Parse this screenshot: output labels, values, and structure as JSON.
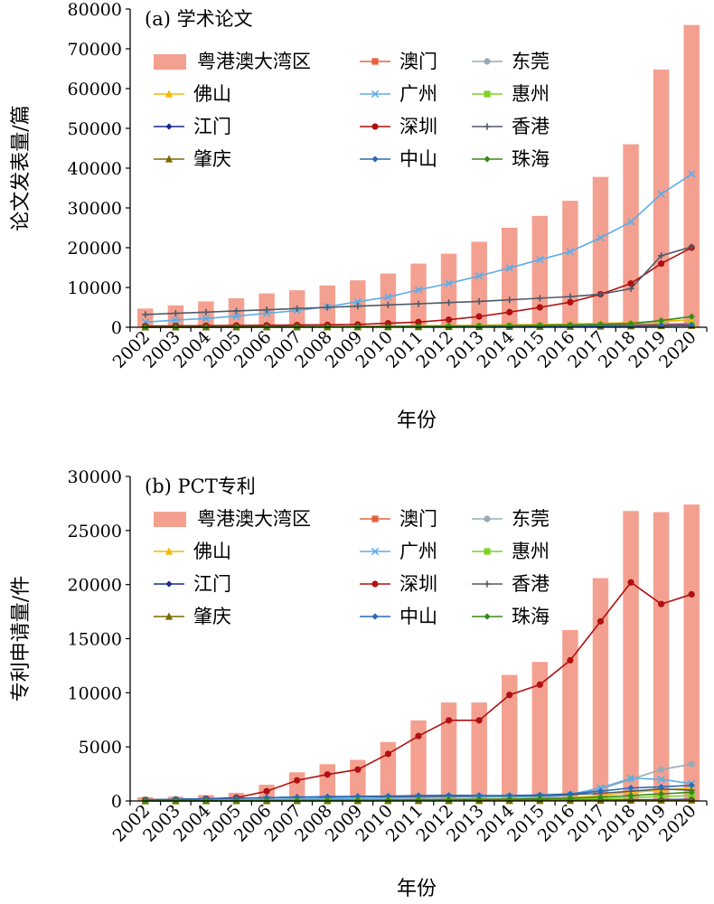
{
  "chart_data": [
    {
      "type": "bar",
      "title": "(a) 学术论文",
      "xlabel": "年份",
      "ylabel": "论文发表量/篇",
      "ylim": [
        0,
        80000
      ],
      "yticks": [
        0,
        10000,
        20000,
        30000,
        40000,
        50000,
        60000,
        70000,
        80000
      ],
      "categories": [
        "2002",
        "2003",
        "2004",
        "2005",
        "2006",
        "2007",
        "2008",
        "2009",
        "2010",
        "2011",
        "2012",
        "2013",
        "2014",
        "2015",
        "2016",
        "2017",
        "2018",
        "2019",
        "2020"
      ],
      "legend_position": "top-left",
      "grid": false,
      "bar_series": {
        "name": "粤港澳大湾区",
        "color": "#f4a090",
        "values": [
          4700,
          5500,
          6500,
          7300,
          8500,
          9300,
          10500,
          11800,
          13500,
          16000,
          18500,
          21500,
          25000,
          28000,
          31800,
          37800,
          46000,
          64800,
          76000
        ]
      },
      "series": [
        {
          "name": "粤港澳大湾区",
          "kind": "bar",
          "color": "#f4a090"
        },
        {
          "name": "澳门",
          "kind": "line",
          "color": "#e8603c",
          "marker": "square",
          "values": [
            50,
            60,
            70,
            80,
            90,
            100,
            120,
            140,
            170,
            200,
            240,
            280,
            320,
            380,
            440,
            520,
            650,
            780,
            900
          ]
        },
        {
          "name": "东莞",
          "kind": "line",
          "color": "#9aaab4",
          "marker": "circle",
          "values": [
            60,
            70,
            80,
            90,
            100,
            120,
            140,
            170,
            200,
            240,
            280,
            320,
            380,
            460,
            560,
            700,
            900,
            1400,
            1900
          ]
        },
        {
          "name": "佛山",
          "kind": "line",
          "color": "#f5b800",
          "marker": "triangle",
          "values": [
            80,
            90,
            110,
            130,
            150,
            180,
            210,
            250,
            300,
            350,
            420,
            500,
            600,
            700,
            820,
            950,
            1150,
            1500,
            1900
          ]
        },
        {
          "name": "广州",
          "kind": "line",
          "color": "#5aaee8",
          "marker": "x",
          "values": [
            1300,
            1800,
            2200,
            2800,
            3500,
            4200,
            5200,
            6400,
            7600,
            9400,
            11000,
            12900,
            14900,
            17000,
            19000,
            22500,
            26500,
            33500,
            38500
          ]
        },
        {
          "name": "惠州",
          "kind": "line",
          "color": "#7ed321",
          "marker": "square",
          "values": [
            20,
            25,
            30,
            35,
            40,
            45,
            55,
            65,
            75,
            90,
            110,
            130,
            150,
            180,
            210,
            260,
            330,
            420,
            520
          ]
        },
        {
          "name": "江门",
          "kind": "line",
          "color": "#1a2a8c",
          "marker": "diamond",
          "values": [
            30,
            35,
            40,
            45,
            55,
            65,
            75,
            90,
            105,
            125,
            150,
            175,
            200,
            240,
            280,
            330,
            400,
            480,
            560
          ]
        },
        {
          "name": "深圳",
          "kind": "line",
          "color": "#b01010",
          "marker": "circle",
          "values": [
            300,
            350,
            400,
            450,
            500,
            550,
            600,
            700,
            1000,
            1300,
            1900,
            2700,
            3800,
            5000,
            6300,
            8300,
            11000,
            16000,
            20000
          ]
        },
        {
          "name": "香港",
          "kind": "line",
          "color": "#505a68",
          "marker": "plus",
          "values": [
            3200,
            3500,
            3800,
            4100,
            4400,
            4700,
            5000,
            5300,
            5600,
            5900,
            6200,
            6500,
            6900,
            7300,
            7700,
            8300,
            9700,
            18000,
            20200
          ]
        },
        {
          "name": "肇庆",
          "kind": "line",
          "color": "#7a6a00",
          "marker": "triangle",
          "values": [
            20,
            25,
            30,
            35,
            40,
            45,
            55,
            65,
            75,
            90,
            105,
            120,
            140,
            160,
            190,
            230,
            280,
            340,
            400
          ]
        },
        {
          "name": "中山",
          "kind": "line",
          "color": "#2a6ab8",
          "marker": "diamond",
          "values": [
            30,
            35,
            40,
            45,
            55,
            65,
            75,
            90,
            105,
            125,
            150,
            175,
            200,
            230,
            270,
            310,
            360,
            420,
            480
          ]
        },
        {
          "name": "珠海",
          "kind": "line",
          "color": "#3a8a1a",
          "marker": "diamond",
          "values": [
            60,
            70,
            80,
            95,
            110,
            130,
            150,
            180,
            210,
            250,
            300,
            350,
            420,
            500,
            600,
            750,
            950,
            1700,
            2700
          ]
        }
      ]
    },
    {
      "type": "bar",
      "title": "(b) PCT专利",
      "xlabel": "年份",
      "ylabel": "专利申请量/件",
      "ylim": [
        0,
        30000
      ],
      "yticks": [
        0,
        5000,
        10000,
        15000,
        20000,
        25000,
        30000
      ],
      "categories": [
        "2002",
        "2003",
        "2004",
        "2005",
        "2006",
        "2007",
        "2008",
        "2009",
        "2010",
        "2011",
        "2012",
        "2013",
        "2014",
        "2015",
        "2016",
        "2017",
        "2018",
        "2019",
        "2020"
      ],
      "legend_position": "top-left",
      "grid": false,
      "bar_series": {
        "name": "粤港澳大湾区",
        "color": "#f4a090",
        "values": [
          350,
          400,
          550,
          750,
          1500,
          2650,
          3400,
          3800,
          5450,
          7450,
          9100,
          9100,
          11650,
          12850,
          15800,
          20600,
          26800,
          26700,
          27400
        ]
      },
      "series": [
        {
          "name": "粤港澳大湾区",
          "kind": "bar",
          "color": "#f4a090"
        },
        {
          "name": "澳门",
          "kind": "line",
          "color": "#e8603c",
          "marker": "square",
          "values": [
            0,
            0,
            0,
            0,
            0,
            5,
            5,
            5,
            10,
            10,
            10,
            15,
            15,
            20,
            25,
            30,
            40,
            50,
            60
          ]
        },
        {
          "name": "东莞",
          "kind": "line",
          "color": "#9aaab4",
          "marker": "circle",
          "values": [
            20,
            25,
            30,
            40,
            60,
            80,
            100,
            120,
            140,
            160,
            180,
            200,
            220,
            300,
            500,
            1100,
            2000,
            2900,
            3400
          ]
        },
        {
          "name": "佛山",
          "kind": "line",
          "color": "#f5b800",
          "marker": "triangle",
          "values": [
            10,
            15,
            20,
            30,
            40,
            50,
            60,
            70,
            80,
            100,
            120,
            150,
            170,
            200,
            300,
            500,
            800,
            1000,
            1200
          ]
        },
        {
          "name": "广州",
          "kind": "line",
          "color": "#5aaee8",
          "marker": "x",
          "values": [
            50,
            60,
            80,
            100,
            140,
            170,
            200,
            240,
            280,
            320,
            360,
            380,
            400,
            420,
            600,
            1200,
            2100,
            2000,
            1600
          ]
        },
        {
          "name": "惠州",
          "kind": "line",
          "color": "#7ed321",
          "marker": "square",
          "values": [
            5,
            5,
            10,
            10,
            15,
            20,
            25,
            30,
            40,
            50,
            60,
            70,
            80,
            100,
            140,
            200,
            300,
            400,
            500
          ]
        },
        {
          "name": "江门",
          "kind": "line",
          "color": "#1a2a8c",
          "marker": "diamond",
          "values": [
            5,
            5,
            5,
            10,
            10,
            15,
            15,
            20,
            20,
            25,
            30,
            35,
            40,
            50,
            60,
            80,
            100,
            120,
            140
          ]
        },
        {
          "name": "深圳",
          "kind": "line",
          "color": "#b01010",
          "marker": "circle",
          "values": [
            100,
            130,
            200,
            300,
            900,
            1900,
            2450,
            2900,
            4350,
            6000,
            7450,
            7450,
            9800,
            10750,
            13000,
            16600,
            20200,
            18200,
            19100
          ]
        },
        {
          "name": "香港",
          "kind": "line",
          "color": "#505a68",
          "marker": "plus",
          "values": [
            100,
            150,
            200,
            250,
            300,
            350,
            350,
            400,
            400,
            420,
            440,
            460,
            470,
            500,
            580,
            700,
            900,
            1100,
            1000
          ]
        },
        {
          "name": "肇庆",
          "kind": "line",
          "color": "#7a6a00",
          "marker": "triangle",
          "values": [
            0,
            0,
            5,
            5,
            5,
            10,
            10,
            10,
            15,
            15,
            20,
            20,
            25,
            30,
            40,
            50,
            60,
            70,
            80
          ]
        },
        {
          "name": "中山",
          "kind": "line",
          "color": "#2a6ab8",
          "marker": "diamond",
          "values": [
            100,
            150,
            200,
            250,
            300,
            350,
            400,
            420,
            450,
            500,
            520,
            500,
            500,
            550,
            650,
            900,
            1200,
            1300,
            1450
          ]
        },
        {
          "name": "珠海",
          "kind": "line",
          "color": "#3a8a1a",
          "marker": "diamond",
          "values": [
            20,
            25,
            30,
            35,
            40,
            50,
            60,
            70,
            80,
            100,
            120,
            140,
            160,
            200,
            250,
            350,
            500,
            650,
            800
          ]
        }
      ]
    }
  ]
}
